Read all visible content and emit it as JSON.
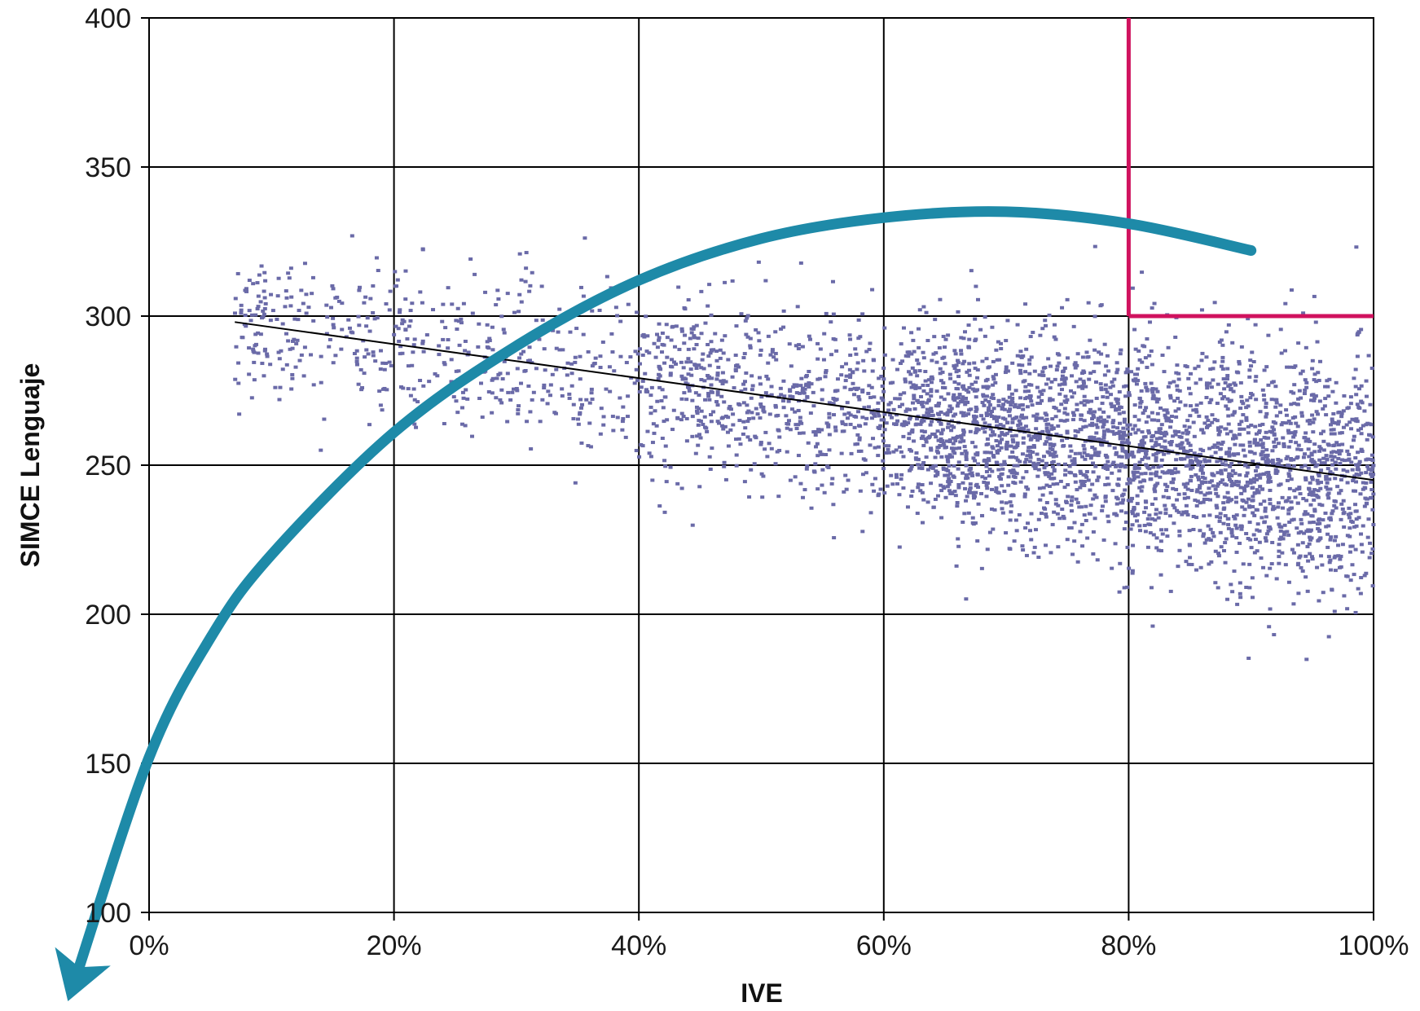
{
  "chart_data": {
    "type": "scatter",
    "xlabel": "IVE",
    "ylabel": "SIMCE Lenguaje",
    "xlim": [
      0,
      100
    ],
    "ylim": [
      100,
      400
    ],
    "x_tick_labels": [
      "0%",
      "20%",
      "40%",
      "60%",
      "80%",
      "100%"
    ],
    "y_tick_labels": [
      "100",
      "150",
      "200",
      "250",
      "300",
      "350",
      "400"
    ],
    "grid": true,
    "point_color": "#6a6aa8",
    "point_count_approx": 4000,
    "cloud": {
      "x_range": [
        7,
        100
      ],
      "y_range": [
        175,
        340
      ],
      "densest_region": {
        "x": [
          65,
          100
        ],
        "y": [
          220,
          290
        ]
      }
    },
    "trendline": {
      "type": "linear",
      "color": "#000000",
      "points": [
        {
          "x": 7,
          "y": 298
        },
        {
          "x": 100,
          "y": 245
        }
      ]
    },
    "annotations": [
      {
        "kind": "curved-arrow",
        "color": "#1e8aa8",
        "path": [
          {
            "x": 90,
            "y": 322
          },
          {
            "x": 80,
            "y": 331
          },
          {
            "x": 70,
            "y": 335
          },
          {
            "x": 60,
            "y": 333
          },
          {
            "x": 50,
            "y": 326
          },
          {
            "x": 40,
            "y": 312
          },
          {
            "x": 30,
            "y": 290
          },
          {
            "x": 20,
            "y": 261
          },
          {
            "x": 10,
            "y": 220
          },
          {
            "x": 5,
            "y": 192
          },
          {
            "x": 0,
            "y": 152
          },
          {
            "x": -6,
            "y": 78
          }
        ]
      },
      {
        "kind": "threshold-lines",
        "color": "#d0125e",
        "x": 80,
        "y": 300
      }
    ]
  }
}
